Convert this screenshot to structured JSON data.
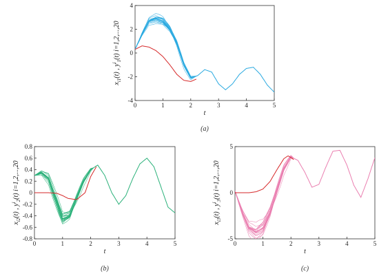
{
  "chart_data": [
    {
      "type": "line",
      "panel": "a",
      "caption": "(a)",
      "xlabel": "t",
      "ylabel": "x_{i1}(t), y^{i}_{1}(t) i=1,2,...,20",
      "ylabel_parts": {
        "main": "x",
        "sub1": "i1",
        "mid": "(t) , y",
        "sup": "i",
        "sub2": "1",
        "tail": "(t) i=1,2,...,20"
      },
      "xlim": [
        0,
        5
      ],
      "ylim": [
        -4,
        4
      ],
      "xticks": [
        "0",
        "1",
        "2",
        "3",
        "4",
        "5"
      ],
      "yticks": [
        "-4",
        "-2",
        "0",
        "2",
        "4"
      ],
      "grid": false,
      "series": [
        {
          "color": "#d62728",
          "x": [
            0.0,
            0.25,
            0.5,
            0.75,
            1.0,
            1.25,
            1.5,
            1.75,
            2.0,
            2.2
          ],
          "y": [
            0.3,
            0.6,
            0.5,
            0.2,
            -0.3,
            -1.0,
            -1.8,
            -2.3,
            -2.4,
            -2.2
          ]
        },
        {
          "color": "#29a9e0",
          "x": [
            0.0,
            0.25,
            0.5,
            0.75,
            1.0,
            1.25,
            1.5,
            1.75,
            2.0,
            2.25,
            2.5,
            2.75,
            3.0,
            3.25,
            3.5,
            3.75,
            4.0,
            4.25,
            4.5,
            4.75,
            5.0
          ],
          "y": [
            0.3,
            1.6,
            2.7,
            2.9,
            2.7,
            2.0,
            0.8,
            -1.0,
            -2.1,
            -1.9,
            -1.4,
            -1.6,
            -2.6,
            -3.1,
            -2.6,
            -1.8,
            -1.3,
            -1.2,
            -1.8,
            -2.7,
            -3.3
          ]
        }
      ],
      "band": {
        "color": "#29a9e0",
        "count": 20,
        "x_end": 2.2,
        "amplitude": 0.45
      }
    },
    {
      "type": "line",
      "panel": "b",
      "caption": "(b)",
      "xlabel": "t",
      "ylabel": "x_{i2}(t), y^{i}_{2}(t) i=1,2,...,20",
      "ylabel_parts": {
        "main": "x",
        "sub1": "i2",
        "mid": "(t) , y",
        "sup": "i",
        "sub2": "2",
        "tail": "(t) i=1,2,...,20"
      },
      "xlim": [
        0,
        5
      ],
      "ylim": [
        -0.8,
        0.8
      ],
      "xticks": [
        "0",
        "1",
        "2",
        "3",
        "4",
        "5"
      ],
      "yticks": [
        "-0.8",
        "-0.6",
        "-0.4",
        "-0.2",
        "0",
        "0.2",
        "0.4",
        "0.6",
        "0.8"
      ],
      "grid": false,
      "series": [
        {
          "color": "#d62728",
          "x": [
            0.0,
            0.5,
            0.8,
            1.0,
            1.2,
            1.5,
            1.8,
            2.0,
            2.2
          ],
          "y": [
            0.0,
            0.0,
            -0.01,
            -0.05,
            -0.1,
            -0.12,
            0.0,
            0.28,
            0.45
          ]
        },
        {
          "color": "#2bb17a",
          "x": [
            0.0,
            0.25,
            0.5,
            0.75,
            1.0,
            1.25,
            1.5,
            1.75,
            2.0,
            2.25,
            2.5,
            2.75,
            3.0,
            3.25,
            3.5,
            3.75,
            4.0,
            4.25,
            4.5,
            4.75,
            5.0
          ],
          "y": [
            0.3,
            0.35,
            0.25,
            -0.1,
            -0.45,
            -0.4,
            -0.1,
            0.2,
            0.4,
            0.48,
            0.3,
            0.0,
            -0.2,
            -0.05,
            0.25,
            0.5,
            0.6,
            0.45,
            0.1,
            -0.25,
            -0.35
          ]
        }
      ],
      "band": {
        "color": "#2bb17a",
        "count": 20,
        "x_end": 2.1,
        "amplitude": 0.14
      }
    },
    {
      "type": "line",
      "panel": "c",
      "caption": "(c)",
      "xlabel": "t",
      "ylabel": "x_{i3}(t), y^{i}_{3}(t) i=1,2,...,20",
      "ylabel_parts": {
        "main": "x",
        "sub1": "i3",
        "mid": "(t) , y",
        "sup": "i",
        "sub2": "3",
        "tail": "(t) i=1,2,...,20"
      },
      "xlim": [
        0,
        5
      ],
      "ylim": [
        -5,
        5
      ],
      "xticks": [
        "0",
        "1",
        "2",
        "3",
        "4",
        "5"
      ],
      "yticks": [
        "-5",
        "0",
        "5"
      ],
      "grid": false,
      "series": [
        {
          "color": "#d62728",
          "x": [
            0.0,
            0.25,
            0.5,
            0.75,
            1.0,
            1.25,
            1.5,
            1.75,
            1.9,
            2.1
          ],
          "y": [
            0.0,
            0.0,
            0.0,
            0.1,
            0.4,
            1.2,
            2.5,
            3.7,
            4.0,
            3.6
          ]
        },
        {
          "color": "#ea7fb0",
          "x": [
            0.0,
            0.25,
            0.5,
            0.75,
            1.0,
            1.25,
            1.5,
            1.75,
            2.0,
            2.25,
            2.5,
            2.75,
            3.0,
            3.25,
            3.5,
            3.75,
            4.0,
            4.25,
            4.5,
            4.75,
            5.0
          ],
          "y": [
            0.2,
            -2.0,
            -3.8,
            -4.3,
            -3.8,
            -2.2,
            0.2,
            2.6,
            3.9,
            3.5,
            2.2,
            0.6,
            0.9,
            2.8,
            4.5,
            4.6,
            3.0,
            0.8,
            -0.5,
            1.5,
            3.8
          ]
        }
      ],
      "band": {
        "color": "#ea7fb0",
        "count": 20,
        "x_end": 2.1,
        "amplitude": 1.1
      }
    }
  ]
}
